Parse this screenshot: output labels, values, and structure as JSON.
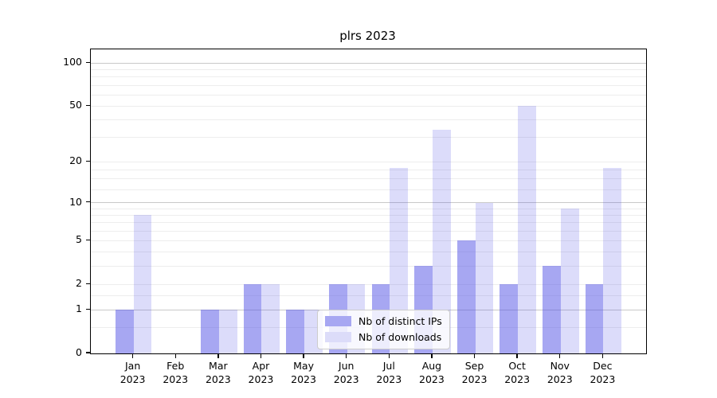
{
  "title": "plrs 2023",
  "legend": {
    "items": [
      {
        "label": "Nb of distinct IPs"
      },
      {
        "label": "Nb of downloads"
      }
    ]
  },
  "chart_data": {
    "type": "bar",
    "title": "plrs 2023",
    "categories": [
      "Jan",
      "Feb",
      "Mar",
      "Apr",
      "May",
      "Jun",
      "Jul",
      "Aug",
      "Sep",
      "Oct",
      "Nov",
      "Dec"
    ],
    "category_year": "2023",
    "series": [
      {
        "name": "Nb of distinct IPs",
        "values": [
          1,
          0,
          1,
          2,
          1,
          2,
          2,
          3,
          5,
          2,
          3,
          2
        ]
      },
      {
        "name": "Nb of downloads",
        "values": [
          8,
          0,
          1,
          2,
          1,
          2,
          18,
          34,
          10,
          50,
          9,
          18
        ]
      }
    ],
    "yscale": "log1p",
    "ylim": [
      0,
      125
    ],
    "yticks": [
      0,
      1,
      2,
      5,
      10,
      20,
      50,
      100
    ],
    "major_gridlines": [
      1,
      10,
      100
    ],
    "minor_gridlines": [
      0.5,
      1.5,
      2,
      3,
      4,
      5,
      6,
      7,
      8,
      9,
      12.5,
      15,
      17.5,
      20,
      30,
      40,
      50,
      60,
      70,
      80,
      90
    ],
    "grid": true,
    "legend_position": "lower-center-inside",
    "colors": {
      "ips_bar": "rgba(80,80,230,0.5)",
      "downloads_bar": "rgba(80,80,230,0.2)",
      "ips_solid": "#a7a7f2",
      "downloads_solid": "#dcdcf9",
      "major_grid": "#c9c9c9",
      "minor_grid": "#ededed",
      "spine": "#000000"
    }
  }
}
